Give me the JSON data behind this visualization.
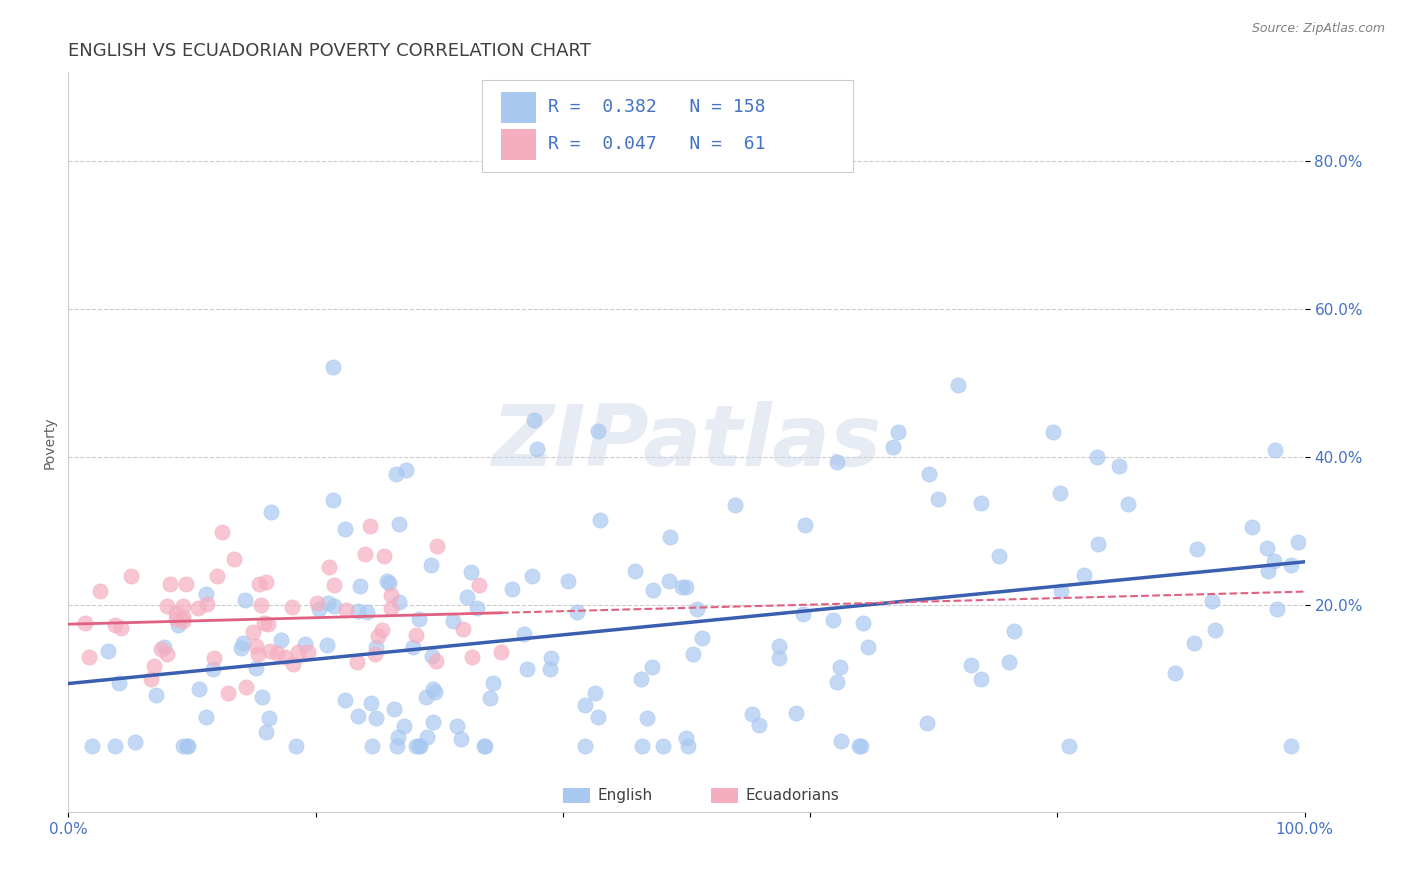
{
  "title": "ENGLISH VS ECUADORIAN POVERTY CORRELATION CHART",
  "source_text": "Source: ZipAtlas.com",
  "ylabel": "Poverty",
  "xlim": [
    0.0,
    1.0
  ],
  "ylim": [
    -0.08,
    0.92
  ],
  "xtick_positions": [
    0.0,
    0.2,
    0.4,
    0.6,
    0.8,
    1.0
  ],
  "xtick_labels": [
    "0.0%",
    "",
    "",
    "",
    "",
    "100.0%"
  ],
  "ytick_positions": [
    0.2,
    0.4,
    0.6,
    0.8
  ],
  "ytick_labels": [
    "20.0%",
    "40.0%",
    "60.0%",
    "80.0%"
  ],
  "english_color": "#a8c8f0",
  "ecuadorian_color": "#f5aec0",
  "english_line_color": "#3a5fb0",
  "ecuadorian_line_color": "#e06080",
  "english_R": 0.382,
  "english_N": 158,
  "ecuadorian_R": 0.047,
  "ecuadorian_N": 61,
  "title_color": "#404040",
  "source_color": "#808080",
  "legend_text_color": "#4472c4",
  "grid_color": "#cccccc",
  "background_color": "#ffffff",
  "title_fontsize": 13,
  "axis_fontsize": 10,
  "tick_fontsize": 11,
  "legend_fontsize": 13,
  "watermark": "ZIPatlas",
  "seed": 42
}
